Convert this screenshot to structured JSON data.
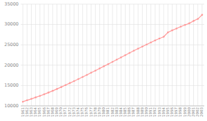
{
  "chart_data": {
    "type": "line",
    "x": [
      1961,
      1962,
      1963,
      1964,
      1965,
      1966,
      1967,
      1968,
      1969,
      1970,
      1971,
      1972,
      1973,
      1974,
      1975,
      1976,
      1977,
      1978,
      1979,
      1980,
      1981,
      1982,
      1983,
      1984,
      1985,
      1986,
      1987,
      1988,
      1989,
      1990,
      1991,
      1992,
      1993,
      1994,
      1995,
      1996,
      1997,
      1998,
      1999,
      2000,
      2001,
      2002,
      2003
    ],
    "series": [
      {
        "values": [
          11025,
          11381,
          11721,
          12083,
          12458,
          12854,
          13269,
          13702,
          14154,
          14622,
          15102,
          15590,
          16086,
          16589,
          17102,
          17614,
          18138,
          18668,
          19201,
          19738,
          20274,
          20812,
          21356,
          21903,
          22454,
          23005,
          23545,
          24063,
          24566,
          25068,
          25590,
          26088,
          26545,
          26977,
          28060,
          28566,
          29000,
          29476,
          29900,
          30291,
          30879,
          31357,
          32364
        ],
        "color": "#FF9999",
        "marker": "circle"
      }
    ],
    "xlim": [
      1960.5,
      2003.5
    ],
    "xticks": [
      1961,
      1962,
      1963,
      1964,
      1965,
      1966,
      1967,
      1968,
      1969,
      1970,
      1971,
      1972,
      1973,
      1974,
      1975,
      1976,
      1977,
      1978,
      1979,
      1980,
      1981,
      1982,
      1983,
      1984,
      1985,
      1986,
      1987,
      1988,
      1989,
      1990,
      1991,
      1992,
      1993,
      1994,
      1995,
      1996,
      1997,
      1998,
      1999,
      2000,
      2001,
      2002,
      2003
    ],
    "ylim": [
      10000,
      35000
    ],
    "yticks": [
      10000,
      15000,
      20000,
      25000,
      30000,
      35000
    ],
    "grid": true
  }
}
